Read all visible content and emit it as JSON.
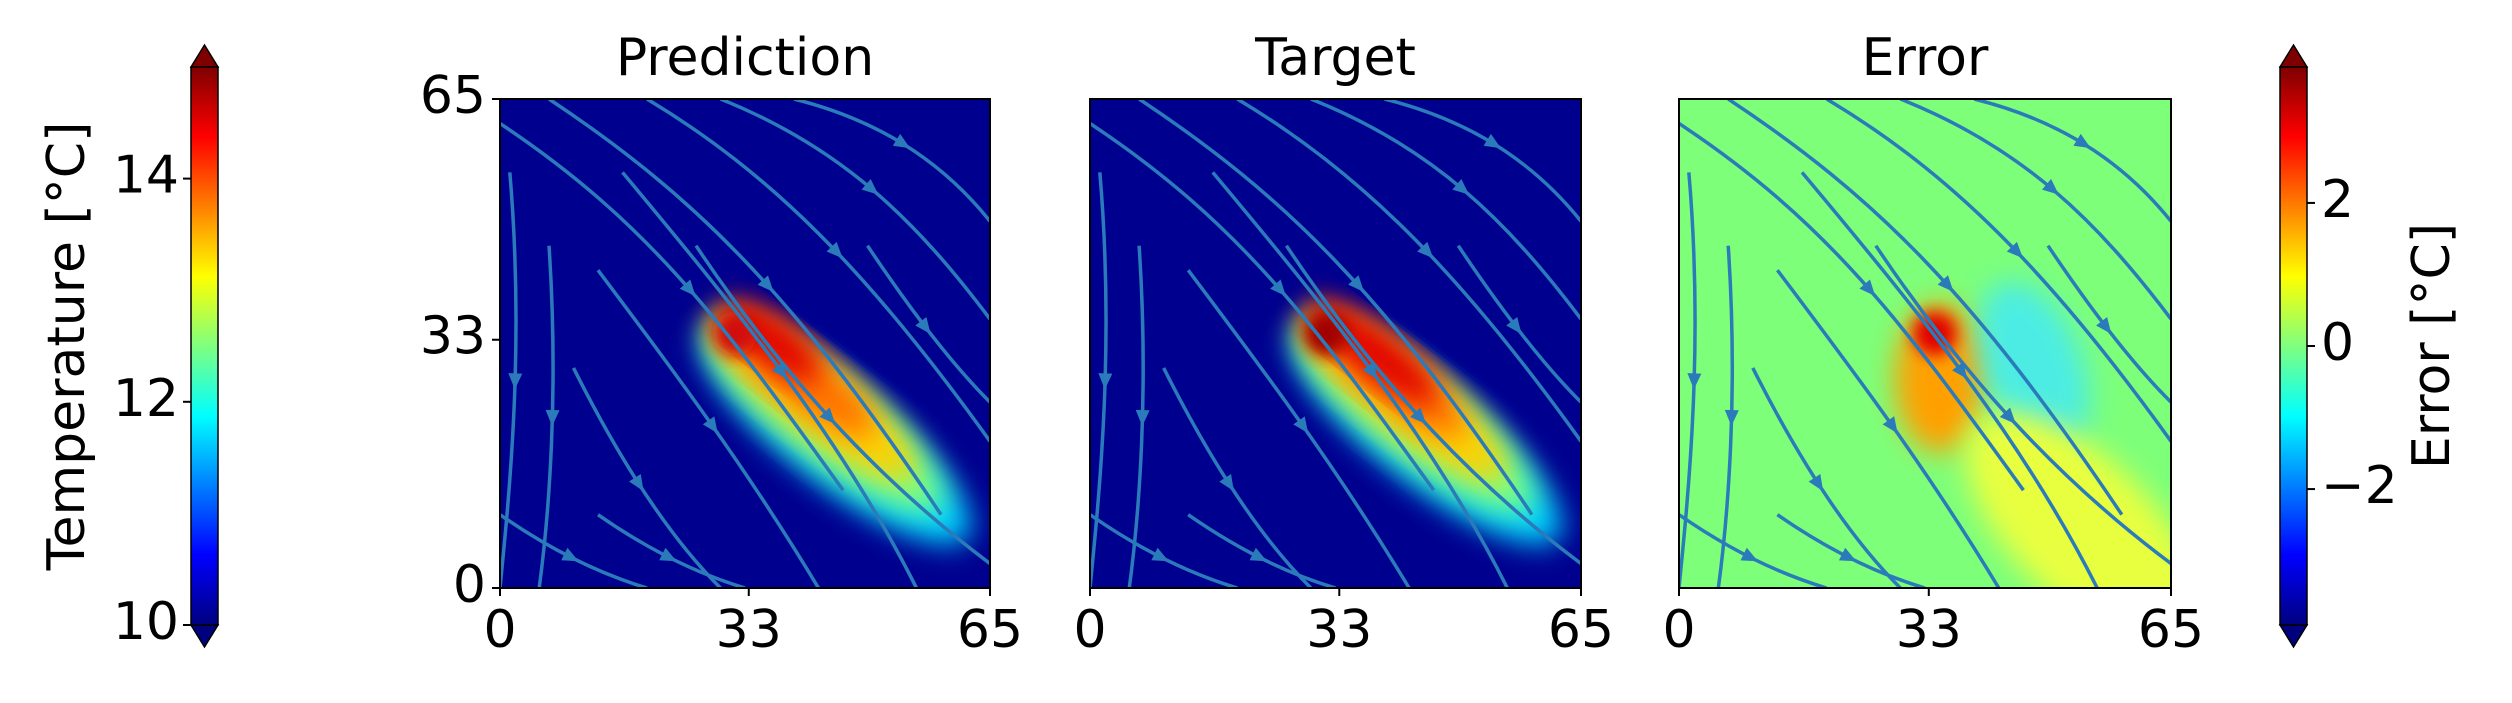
{
  "chart_data": [
    {
      "type": "colorbar",
      "label": "Temperature [°C]",
      "ylim": [
        10,
        15
      ],
      "yticks": [
        10,
        12,
        14
      ],
      "side": "left"
    },
    {
      "type": "heatmap",
      "title": "Prediction",
      "xlim": [
        0,
        65
      ],
      "ylim": [
        0,
        65
      ],
      "xticks": [
        0,
        33,
        65
      ],
      "yticks": [
        0,
        33,
        65
      ],
      "field": "temperature"
    },
    {
      "type": "heatmap",
      "title": "Target",
      "xlim": [
        0,
        65
      ],
      "ylim": [
        0,
        65
      ],
      "xticks": [
        0,
        33,
        65
      ],
      "yticks": [],
      "field": "temperature"
    },
    {
      "type": "heatmap",
      "title": "Error",
      "xlim": [
        0,
        65
      ],
      "ylim": [
        0,
        65
      ],
      "xticks": [
        0,
        33,
        65
      ],
      "yticks": [],
      "field": "error"
    },
    {
      "type": "colorbar",
      "label": "Error [°C]",
      "ylim": [
        -3.9,
        3.9
      ],
      "yticks": [
        {
          "value": -2,
          "label": "−2"
        },
        0,
        2
      ],
      "side": "right"
    }
  ]
}
